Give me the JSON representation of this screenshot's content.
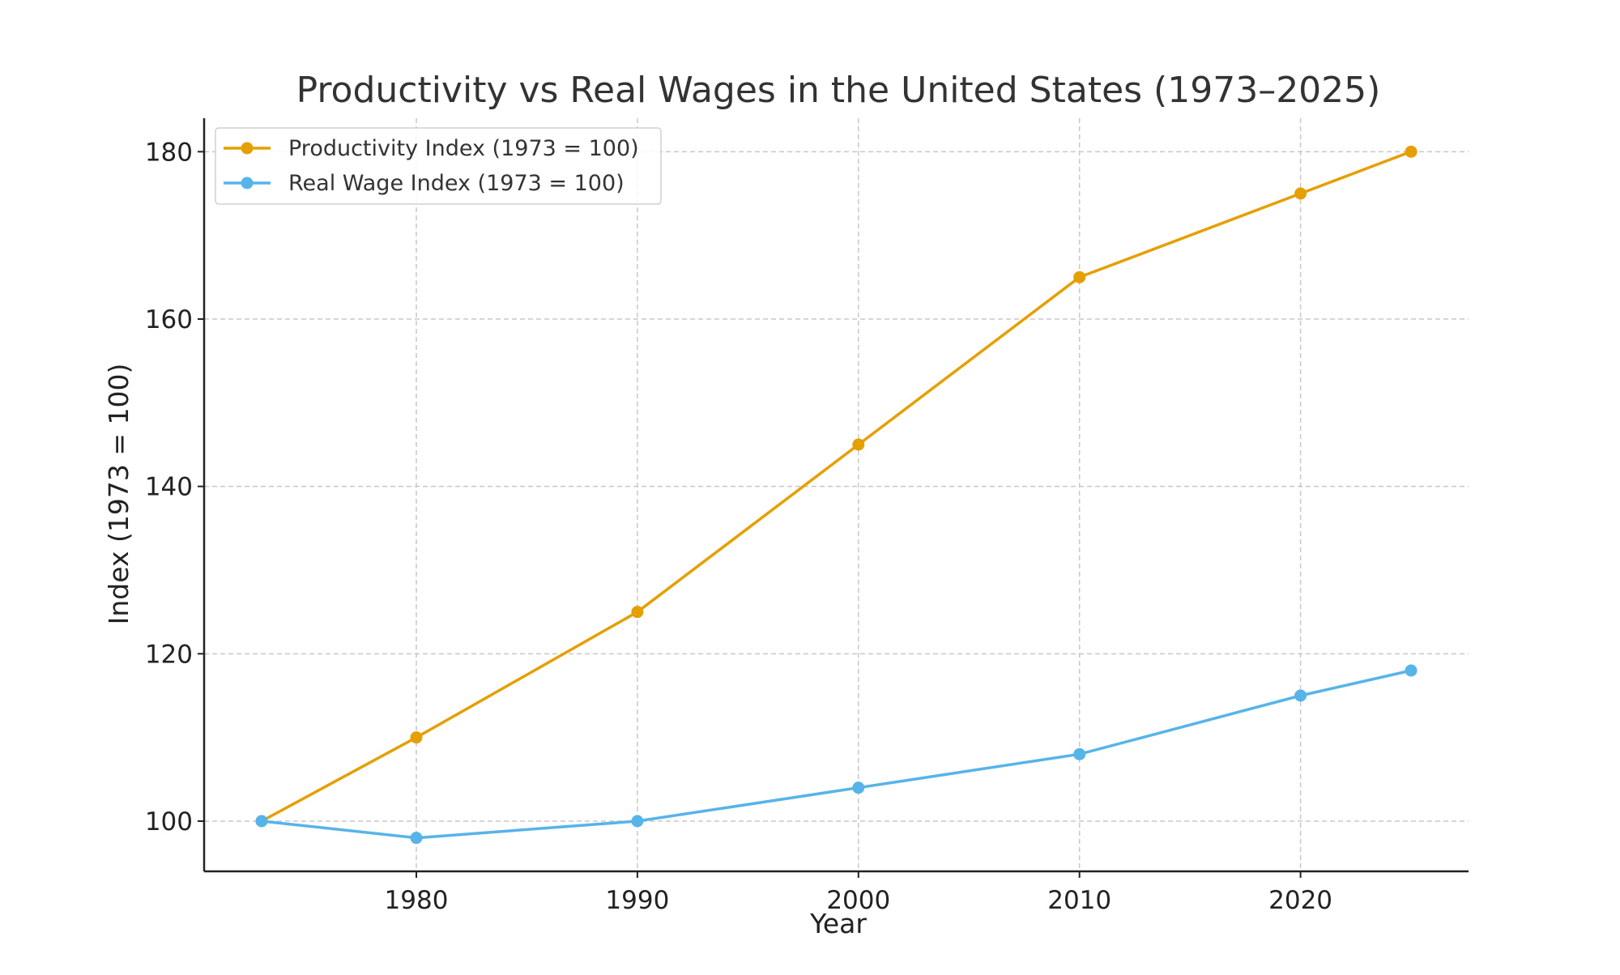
{
  "chart_data": {
    "type": "line",
    "title": "Productivity vs Real Wages in the United States (1973–2025)",
    "xlabel": "Year",
    "ylabel": "Index (1973 = 100)",
    "x": [
      1973,
      1980,
      1990,
      2000,
      2010,
      2020,
      2025
    ],
    "xlim": [
      1970.4,
      2027.6
    ],
    "ylim": [
      94,
      184
    ],
    "xticks": [
      1980,
      1990,
      2000,
      2010,
      2020
    ],
    "yticks": [
      100,
      120,
      140,
      160,
      180
    ],
    "grid": true,
    "legend_position": "top-left",
    "series": [
      {
        "name": "Productivity Index (1973 = 100)",
        "color": "#E69F00",
        "values": [
          100,
          110,
          125,
          145,
          165,
          175,
          180
        ]
      },
      {
        "name": "Real Wage Index (1973 = 100)",
        "color": "#56B4E9",
        "values": [
          100,
          98,
          100,
          104,
          108,
          115,
          118
        ]
      }
    ]
  }
}
